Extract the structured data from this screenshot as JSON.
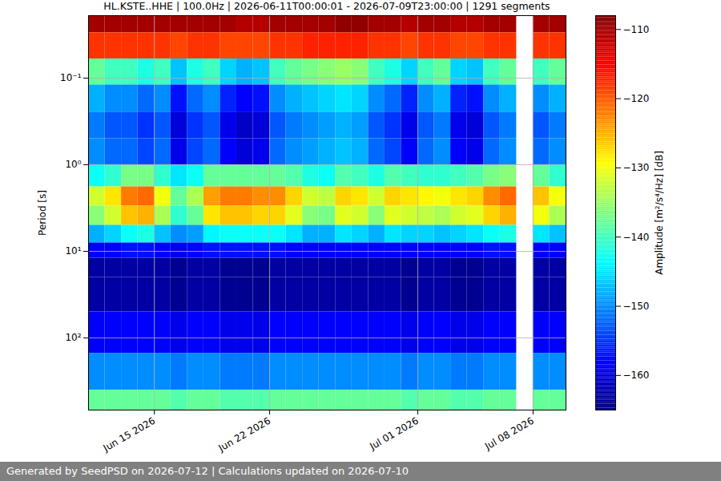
{
  "chart_data": {
    "type": "heatmap",
    "title": "HL.KSTE..HHE | 100.0Hz | 2026-06-11T00:00:01 - 2026-07-09T23:00:00 | 1291 segments",
    "caption": "Generated by SeedPSD on 2026-07-12 | Calculations updated on 2026-07-10",
    "y_label": "Period [s]",
    "log": "y",
    "grid": true,
    "xlim": [
      "2026-06-11",
      "2026-07-10"
    ],
    "xticks": [
      {
        "value": "2026-06-15",
        "label": "Jun 15 2026"
      },
      {
        "value": "2026-06-22",
        "label": "Jun 22 2026"
      },
      {
        "value": "2026-07-01",
        "label": "Jul 01 2026"
      },
      {
        "value": "2026-07-08",
        "label": "Jul 08 2026"
      }
    ],
    "ylim": [
      0.019,
      680
    ],
    "yticks": [
      {
        "value": 0.1,
        "label": "10⁻¹"
      },
      {
        "value": 1,
        "label": "10⁰"
      },
      {
        "value": 10,
        "label": "10¹"
      },
      {
        "value": 100,
        "label": "10²"
      }
    ],
    "x_bins": [
      "2026-06-11",
      "2026-06-12",
      "2026-06-13",
      "2026-06-14",
      "2026-06-15",
      "2026-06-16",
      "2026-06-17",
      "2026-06-18",
      "2026-06-19",
      "2026-06-20",
      "2026-06-21",
      "2026-06-22",
      "2026-06-23",
      "2026-06-24",
      "2026-06-25",
      "2026-06-26",
      "2026-06-27",
      "2026-06-28",
      "2026-06-29",
      "2026-06-30",
      "2026-07-01",
      "2026-07-02",
      "2026-07-03",
      "2026-07-04",
      "2026-07-05",
      "2026-07-06",
      "2026-07-07",
      "2026-07-08",
      "2026-07-09",
      "2026-07-10"
    ],
    "period_bins": [
      0.019,
      0.03,
      0.06,
      0.12,
      0.25,
      0.5,
      1,
      1.8,
      3,
      5,
      8,
      12,
      20,
      50,
      150,
      400,
      680
    ],
    "cells": [
      [
        -110,
        -118,
        -138,
        -148,
        -151,
        -150,
        -143,
        -132,
        -136,
        -148,
        -158,
        -163,
        -163,
        -158,
        -150,
        -138
      ],
      [
        -110,
        -118,
        -140,
        -150,
        -153,
        -152,
        -141,
        -128,
        -132,
        -146,
        -158,
        -163,
        -163,
        -158,
        -150,
        -138
      ],
      [
        -110,
        -118,
        -140,
        -150,
        -153,
        -152,
        -137,
        -122,
        -126,
        -143,
        -157,
        -163,
        -163,
        -158,
        -150,
        -138
      ],
      [
        -110,
        -118,
        -142,
        -152,
        -155,
        -154,
        -137,
        -121,
        -125,
        -142,
        -157,
        -163,
        -163,
        -158,
        -150,
        -138
      ],
      [
        -110,
        -118,
        -140,
        -150,
        -153,
        -152,
        -141,
        -130,
        -134,
        -147,
        -158,
        -163,
        -163,
        -158,
        -150,
        -138
      ],
      [
        -110,
        -119,
        -147,
        -157,
        -160,
        -159,
        -145,
        -138,
        -141,
        -150,
        -159,
        -164,
        -164,
        -159,
        -151,
        -139
      ],
      [
        -110,
        -118,
        -142,
        -152,
        -155,
        -154,
        -143,
        -134,
        -138,
        -149,
        -158,
        -163,
        -163,
        -158,
        -150,
        -138
      ],
      [
        -110,
        -118,
        -140,
        -150,
        -153,
        -152,
        -138,
        -124,
        -128,
        -144,
        -157,
        -163,
        -163,
        -158,
        -150,
        -138
      ],
      [
        -110,
        -119,
        -146,
        -156,
        -159,
        -158,
        -138,
        -122,
        -126,
        -143,
        -157,
        -164,
        -164,
        -159,
        -151,
        -139
      ],
      [
        -111,
        -119,
        -148,
        -158,
        -161,
        -160,
        -138,
        -122,
        -126,
        -143,
        -157,
        -164,
        -164,
        -159,
        -151,
        -139
      ],
      [
        -111,
        -119,
        -147,
        -157,
        -160,
        -159,
        -138,
        -123,
        -127,
        -143,
        -157,
        -164,
        -164,
        -159,
        -151,
        -139
      ],
      [
        -110,
        -118,
        -140,
        -150,
        -153,
        -152,
        -138,
        -123,
        -127,
        -143,
        -157,
        -163,
        -163,
        -158,
        -150,
        -138
      ],
      [
        -110,
        -118,
        -138,
        -148,
        -151,
        -150,
        -139,
        -127,
        -131,
        -145,
        -158,
        -163,
        -163,
        -158,
        -150,
        -138
      ],
      [
        -110,
        -117,
        -137,
        -147,
        -150,
        -149,
        -142,
        -132,
        -136,
        -148,
        -158,
        -163,
        -163,
        -158,
        -150,
        -138
      ],
      [
        -110,
        -117,
        -136,
        -146,
        -149,
        -148,
        -143,
        -133,
        -137,
        -148,
        -158,
        -163,
        -163,
        -158,
        -150,
        -138
      ],
      [
        -109,
        -117,
        -135,
        -145,
        -148,
        -147,
        -139,
        -127,
        -131,
        -145,
        -158,
        -163,
        -163,
        -158,
        -150,
        -138
      ],
      [
        -109,
        -117,
        -136,
        -146,
        -149,
        -148,
        -140,
        -128,
        -132,
        -146,
        -158,
        -163,
        -163,
        -158,
        -150,
        -138
      ],
      [
        -110,
        -118,
        -140,
        -150,
        -153,
        -152,
        -142,
        -132,
        -136,
        -148,
        -158,
        -163,
        -163,
        -158,
        -150,
        -138
      ],
      [
        -110,
        -118,
        -142,
        -152,
        -155,
        -154,
        -139,
        -127,
        -131,
        -145,
        -158,
        -163,
        -163,
        -158,
        -150,
        -138
      ],
      [
        -111,
        -119,
        -146,
        -156,
        -159,
        -158,
        -140,
        -128,
        -132,
        -146,
        -158,
        -164,
        -164,
        -159,
        -151,
        -139
      ],
      [
        -110,
        -118,
        -140,
        -150,
        -153,
        -152,
        -141,
        -129,
        -133,
        -146,
        -158,
        -163,
        -163,
        -158,
        -150,
        -138
      ],
      [
        -110,
        -118,
        -138,
        -148,
        -151,
        -150,
        -141,
        -130,
        -134,
        -147,
        -158,
        -163,
        -163,
        -158,
        -150,
        -138
      ],
      [
        -111,
        -119,
        -146,
        -156,
        -159,
        -158,
        -140,
        -128,
        -132,
        -146,
        -158,
        -164,
        -164,
        -159,
        -151,
        -139
      ],
      [
        -111,
        -119,
        -147,
        -157,
        -160,
        -159,
        -139,
        -127,
        -131,
        -145,
        -158,
        -164,
        -164,
        -159,
        -151,
        -139
      ],
      [
        -110,
        -118,
        -140,
        -150,
        -153,
        -152,
        -137,
        -123,
        -127,
        -143,
        -157,
        -163,
        -163,
        -158,
        -150,
        -138
      ],
      [
        -110,
        -118,
        -138,
        -148,
        -151,
        -150,
        -136,
        -121,
        -125,
        -142,
        -157,
        -163,
        -163,
        -158,
        -150,
        -138
      ],
      null,
      [
        -110,
        -118,
        -140,
        -150,
        -153,
        -152,
        -138,
        -126,
        -130,
        -145,
        -158,
        -163,
        -163,
        -158,
        -150,
        -138
      ],
      [
        -110,
        -118,
        -138,
        -148,
        -151,
        -150,
        -141,
        -130,
        -134,
        -147,
        -158,
        -163,
        -163,
        -158,
        -150,
        -138
      ]
    ],
    "colorbar": {
      "label": "Amplitude [m²/s⁴/Hz] [dB]",
      "lim": [
        -165,
        -108
      ],
      "ticks": [
        -160,
        -150,
        -140,
        -130,
        -120,
        -110
      ]
    }
  }
}
